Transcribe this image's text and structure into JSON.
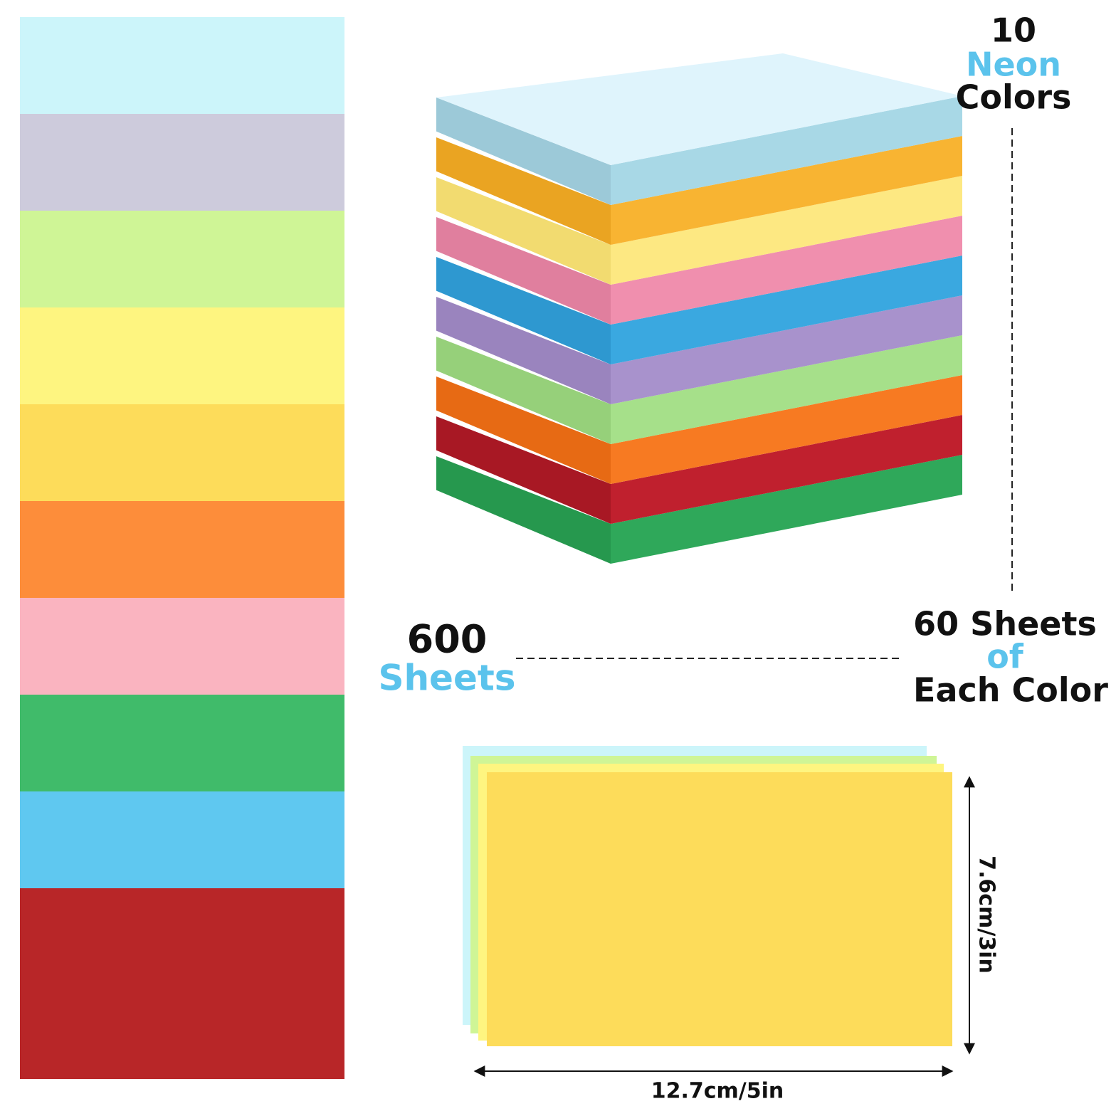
{
  "callouts": [
    {
      "lines": [
        "10",
        "Neon",
        "Colors"
      ]
    },
    {
      "lines": [
        "600",
        "Sheets"
      ]
    },
    {
      "lines": [
        "60 Sheets",
        "of",
        "Each Color"
      ]
    }
  ],
  "dimensions": {
    "width": "12.7cm/5in",
    "height": "7.6cm/3in"
  }
}
